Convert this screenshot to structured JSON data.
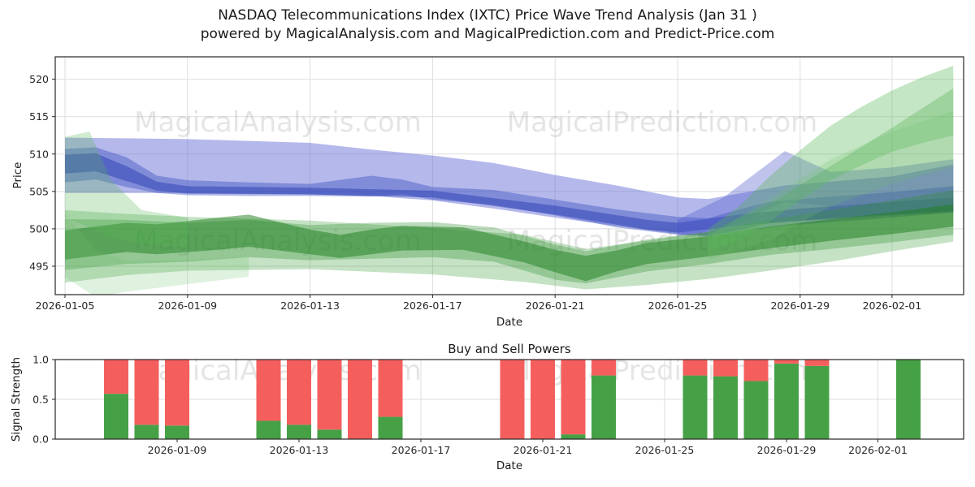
{
  "figure": {
    "title_line1": "NASDAQ Telecommunications Index (IXTC) Price Wave Trend Analysis (Jan 31 )",
    "title_line2": "powered by MagicalAnalysis.com and MagicalPrediction.com and Predict-Price.com"
  },
  "watermarks": {
    "left": "MagicalAnalysis.com",
    "right": "MagicalPrediction.com"
  },
  "axes": {
    "price": {
      "ylabel": "Price",
      "xlabel": "Date"
    },
    "signal": {
      "title": "Buy and Sell Powers",
      "ylabel": "Signal Strength",
      "xlabel": "Date"
    }
  },
  "colors": {
    "buy_green": "#46a046",
    "sell_red": "#f45f5e",
    "axis": "#262626",
    "grid": "#dedede",
    "watermark": "#808080"
  },
  "chart_data": [
    {
      "type": "area",
      "title": "NASDAQ Telecommunications Index (IXTC) Price Wave Trend Analysis (Jan 31 )",
      "xlabel": "Date",
      "ylabel": "Price",
      "x_unit": "days since 2026-01-05",
      "ylim": [
        491.2,
        523.0
      ],
      "xlim_days": [
        -0.4,
        29.4
      ],
      "grid": true,
      "yticks": [
        495,
        500,
        505,
        510,
        515,
        520
      ],
      "xticks": {
        "days": [
          0,
          4,
          8,
          12,
          16,
          20,
          24,
          27
        ],
        "labels": [
          "2026-01-05",
          "2026-01-09",
          "2026-01-13",
          "2026-01-17",
          "2026-01-21",
          "2026-01-25",
          "2026-01-29",
          "2026-02-01"
        ]
      },
      "bands": [
        {
          "name": "blue-outer-envelope",
          "color": "#5a62d2",
          "opacity": 0.45,
          "x": [
            0,
            2,
            4,
            8,
            10,
            12,
            14,
            16,
            18,
            20,
            21,
            23.5,
            25,
            27,
            29
          ],
          "lo": [
            504.8,
            504.8,
            504.8,
            504.6,
            504.4,
            503.8,
            502.7,
            501.5,
            500.4,
            499.3,
            499.1,
            500.4,
            500.9,
            501.5,
            502.2
          ],
          "hi": [
            512.2,
            512.1,
            512.0,
            511.5,
            510.6,
            509.8,
            508.8,
            507.2,
            505.8,
            504.2,
            504.0,
            505.8,
            506.3,
            507.0,
            508.6
          ]
        },
        {
          "name": "blue-mid-band",
          "color": "#3a4fc0",
          "opacity": 0.42,
          "x": [
            0,
            1,
            2,
            3,
            4,
            6,
            8,
            10,
            11,
            12,
            14,
            16,
            18,
            20,
            21,
            22,
            23,
            25,
            27,
            29
          ],
          "lo": [
            506.2,
            506.6,
            505.6,
            504.8,
            504.5,
            504.4,
            504.4,
            504.3,
            504.6,
            503.9,
            503.2,
            501.8,
            500.2,
            499.2,
            499.0,
            499.8,
            500.8,
            501.3,
            501.8,
            502.2
          ],
          "hi": [
            510.7,
            510.9,
            509.6,
            507.1,
            506.5,
            506.2,
            506.0,
            507.1,
            506.6,
            505.6,
            505.2,
            503.9,
            502.6,
            501.6,
            501.4,
            502.6,
            503.6,
            504.3,
            504.9,
            505.7
          ]
        },
        {
          "name": "blue-core-band",
          "color": "#1f35ae",
          "opacity": 0.45,
          "x": [
            0,
            1,
            2,
            3,
            4,
            8,
            12,
            16,
            19,
            20,
            22,
            24,
            26,
            29
          ],
          "lo": [
            507.4,
            507.7,
            506.4,
            505.1,
            504.7,
            504.6,
            504.2,
            501.9,
            499.9,
            499.5,
            500.4,
            501.1,
            501.7,
            502.4
          ],
          "hi": [
            509.9,
            510.1,
            508.4,
            506.3,
            505.7,
            505.5,
            505.1,
            503.1,
            501.2,
            500.8,
            501.9,
            502.7,
            503.3,
            504.2
          ]
        },
        {
          "name": "blue-forecast-bump",
          "color": "#4a55cc",
          "opacity": 0.35,
          "x": [
            20,
            21.5,
            23.5,
            25,
            27,
            29
          ],
          "lo": [
            499.0,
            500.0,
            503.6,
            503.0,
            503.6,
            504.2
          ],
          "hi": [
            501.2,
            504.2,
            510.4,
            507.6,
            508.2,
            509.3
          ]
        },
        {
          "name": "green-outer-envelope",
          "color": "#3f9f3f",
          "opacity": 0.3,
          "x": [
            0,
            2,
            4,
            8,
            12,
            15,
            17,
            19,
            21,
            23,
            25,
            27,
            29
          ],
          "lo": [
            492.8,
            493.8,
            494.4,
            494.6,
            493.9,
            492.9,
            491.9,
            492.5,
            493.3,
            494.4,
            495.6,
            497.0,
            498.3
          ],
          "hi": [
            502.5,
            502.0,
            501.6,
            501.1,
            500.1,
            499.2,
            497.3,
            498.4,
            499.6,
            503.3,
            508.4,
            513.5,
            518.8
          ]
        },
        {
          "name": "green-mid-band",
          "color": "#2f8f2f",
          "opacity": 0.32,
          "x": [
            0,
            2,
            4,
            6,
            8,
            10,
            12,
            14,
            16,
            17,
            19,
            21,
            23,
            25,
            27,
            29
          ],
          "lo": [
            494.5,
            495.3,
            495.6,
            496.2,
            495.8,
            496.0,
            496.2,
            495.6,
            493.2,
            492.7,
            494.3,
            495.3,
            496.5,
            497.3,
            498.2,
            499.2
          ],
          "hi": [
            501.3,
            501.2,
            500.8,
            501.2,
            500.5,
            500.8,
            500.9,
            500.2,
            497.9,
            497.0,
            498.6,
            499.6,
            501.2,
            502.5,
            503.8,
            505.2
          ]
        },
        {
          "name": "green-dark-band",
          "color": "#1e7d1e",
          "opacity": 0.5,
          "x": [
            0,
            1,
            2,
            3,
            5,
            6,
            8,
            9,
            10,
            11,
            13,
            15,
            16,
            17,
            18,
            19,
            21,
            23,
            25,
            27,
            29
          ],
          "lo": [
            495.9,
            496.4,
            496.9,
            496.6,
            497.2,
            497.6,
            496.6,
            496.1,
            496.6,
            497.1,
            497.2,
            495.5,
            494.2,
            493.0,
            494.3,
            495.3,
            496.3,
            497.4,
            498.4,
            499.3,
            500.3
          ],
          "hi": [
            499.8,
            500.3,
            500.8,
            500.6,
            501.5,
            501.9,
            499.9,
            499.2,
            499.9,
            500.4,
            500.2,
            498.3,
            497.2,
            496.4,
            497.1,
            498.1,
            499.0,
            500.3,
            501.3,
            502.2,
            503.3
          ]
        },
        {
          "name": "green-rising-fan-1",
          "color": "#57b657",
          "opacity": 0.35,
          "x": [
            21,
            22,
            23,
            24,
            25,
            26,
            27,
            28,
            29
          ],
          "lo": [
            497.0,
            498.5,
            501.0,
            503.8,
            506.5,
            508.5,
            510.3,
            511.5,
            512.5
          ],
          "hi": [
            500.0,
            503.0,
            507.0,
            510.5,
            513.8,
            516.3,
            518.5,
            520.3,
            521.8
          ]
        },
        {
          "name": "green-rising-fan-2",
          "color": "#6fc06f",
          "opacity": 0.22,
          "x": [
            21,
            23,
            25,
            27,
            29
          ],
          "lo": [
            495.8,
            498.5,
            503.0,
            506.0,
            508.3
          ],
          "hi": [
            499.0,
            504.0,
            509.3,
            513.0,
            515.8
          ]
        },
        {
          "name": "green-left-spike",
          "color": "#57b657",
          "opacity": 0.28,
          "x": [
            0,
            0.8,
            1.5,
            2.5,
            4
          ],
          "lo": [
            501.5,
            500.2,
            498.8,
            498.0,
            497.5
          ],
          "hi": [
            512.3,
            513.0,
            506.5,
            502.5,
            501.5
          ]
        },
        {
          "name": "green-left-wedge",
          "color": "#6fc06f",
          "opacity": 0.22,
          "x": [
            0,
            1,
            2,
            4,
            6
          ],
          "lo": [
            493.5,
            490.9,
            491.6,
            492.6,
            493.6
          ],
          "hi": [
            502.0,
            497.2,
            495.8,
            495.8,
            496.3
          ]
        }
      ]
    },
    {
      "type": "bar",
      "title": "Buy and Sell Powers",
      "xlabel": "Date",
      "ylabel": "Signal Strength",
      "ylim": [
        0,
        1
      ],
      "stacked": true,
      "grid": true,
      "dates": [
        "2026-01-07",
        "2026-01-08",
        "2026-01-09",
        "2026-01-12",
        "2026-01-13",
        "2026-01-14",
        "2026-01-15",
        "2026-01-16",
        "2026-01-20",
        "2026-01-21",
        "2026-01-22",
        "2026-01-23",
        "2026-01-26",
        "2026-01-27",
        "2026-01-28",
        "2026-01-29",
        "2026-01-30",
        "2026-02-02"
      ],
      "days": [
        2,
        3,
        4,
        7,
        8,
        9,
        10,
        11,
        15,
        16,
        17,
        18,
        21,
        22,
        23,
        24,
        25,
        28
      ],
      "series": [
        {
          "name": "Buy",
          "color": "#46a046",
          "values": [
            0.57,
            0.18,
            0.17,
            0.23,
            0.18,
            0.12,
            0.0,
            0.28,
            0.0,
            0.0,
            0.06,
            0.8,
            0.8,
            0.79,
            0.73,
            0.95,
            0.92,
            1.0
          ]
        },
        {
          "name": "Sell",
          "color": "#f45f5e",
          "values": [
            0.43,
            0.82,
            0.83,
            0.77,
            0.82,
            0.88,
            1.0,
            0.72,
            1.0,
            1.0,
            0.94,
            0.2,
            0.2,
            0.21,
            0.27,
            0.05,
            0.08,
            0.0
          ]
        }
      ],
      "yticks": [
        "0.0",
        "0.5",
        "1.0"
      ],
      "xticks": {
        "days": [
          4,
          8,
          12,
          16,
          20,
          24,
          27
        ],
        "labels": [
          "2026-01-09",
          "2026-01-13",
          "2026-01-17",
          "2026-01-21",
          "2026-01-25",
          "2026-01-29",
          "2026-02-01"
        ]
      }
    }
  ]
}
